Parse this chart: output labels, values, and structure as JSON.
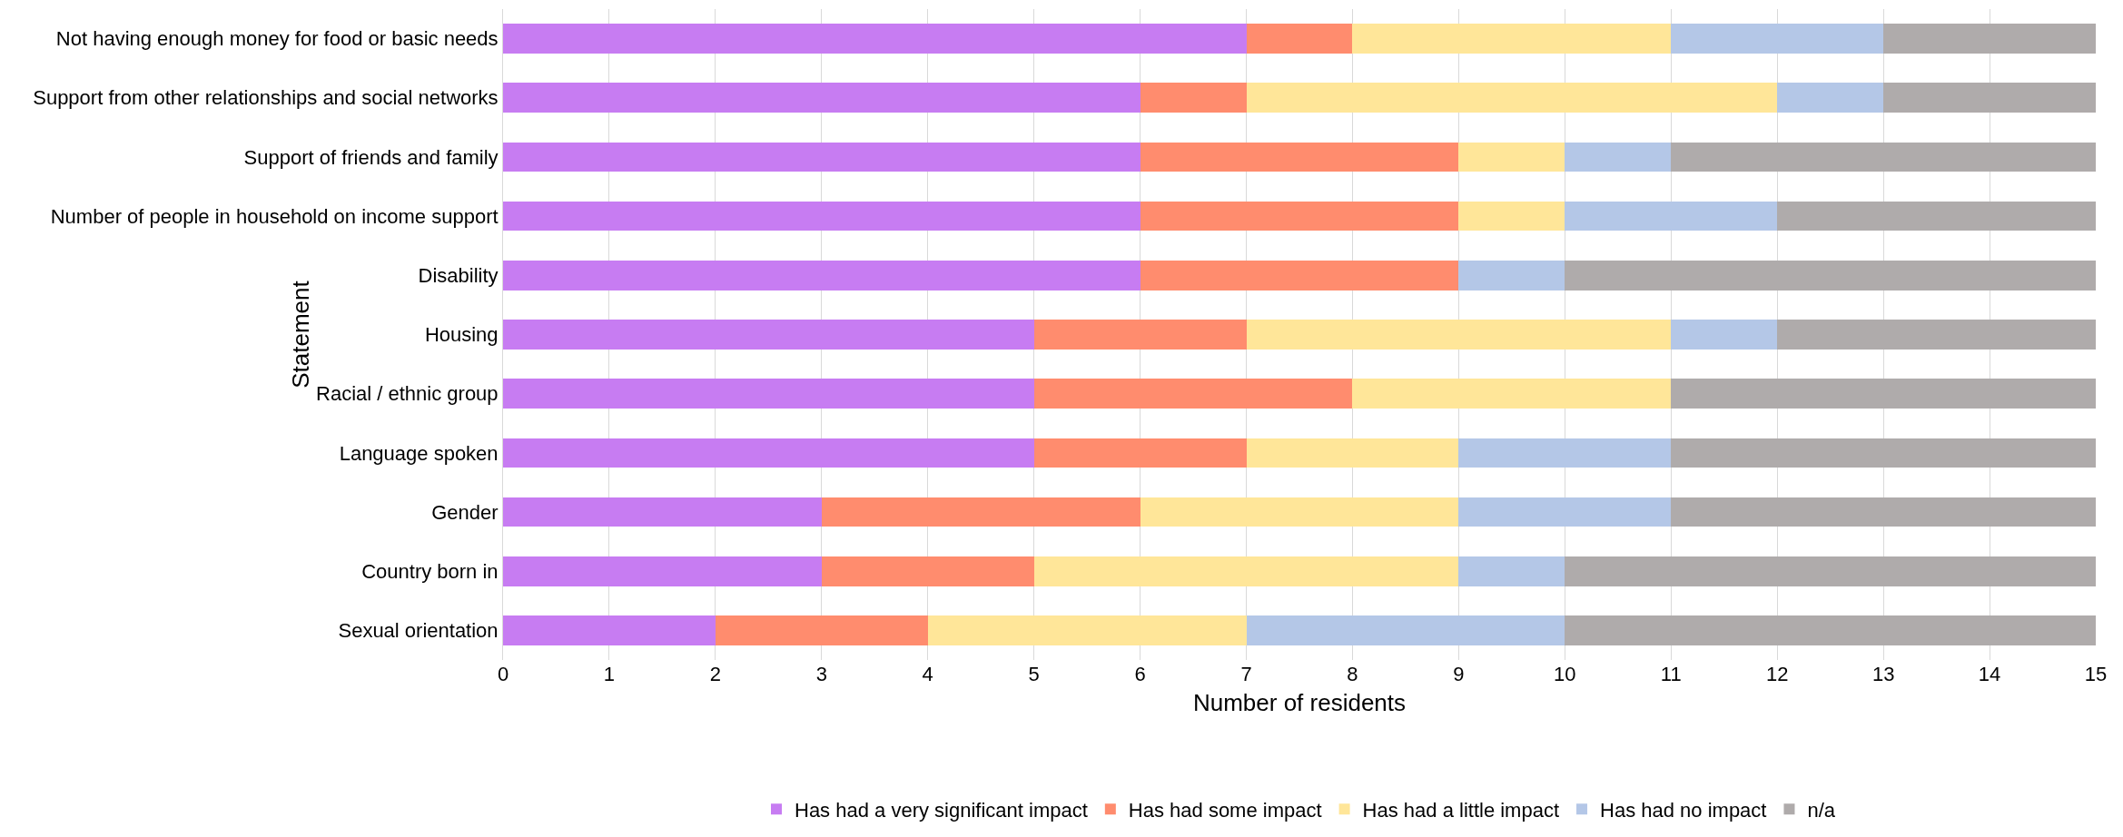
{
  "chart_data": {
    "type": "bar",
    "orientation": "horizontal",
    "stacked": true,
    "xlabel": "Number of residents",
    "ylabel": "Statement",
    "categories": [
      "Not having enough money for food or basic needs",
      "Support from other relationships and social networks",
      "Support of friends and family",
      "Number of people in household on income support",
      "Disability",
      "Housing",
      "Racial / ethnic group",
      "Language spoken",
      "Gender",
      "Country born in",
      "Sexual orientation"
    ],
    "series": [
      {
        "name": "Has had a very significant impact",
        "color": "#c77cf2",
        "values": [
          7,
          6,
          6,
          6,
          6,
          5,
          5,
          5,
          3,
          3,
          2
        ]
      },
      {
        "name": "Has had some impact",
        "color": "#ff8c6e",
        "values": [
          1,
          1,
          3,
          3,
          3,
          2,
          3,
          2,
          3,
          2,
          2
        ]
      },
      {
        "name": "Has had a little impact",
        "color": "#ffe699",
        "values": [
          3,
          5,
          1,
          1,
          0,
          4,
          3,
          2,
          3,
          4,
          3
        ]
      },
      {
        "name": "Has had no impact",
        "color": "#b4c7e7",
        "values": [
          2,
          1,
          1,
          2,
          1,
          1,
          0,
          2,
          2,
          1,
          3
        ]
      },
      {
        "name": "n/a",
        "color": "#afabab",
        "values": [
          2,
          2,
          4,
          3,
          5,
          3,
          4,
          4,
          4,
          5,
          5
        ]
      }
    ],
    "xlim": [
      0,
      15
    ],
    "xticks": [
      0,
      1,
      2,
      3,
      4,
      5,
      6,
      7,
      8,
      9,
      10,
      11,
      12,
      13,
      14,
      15
    ],
    "grid": "x",
    "legend": "bottom"
  }
}
